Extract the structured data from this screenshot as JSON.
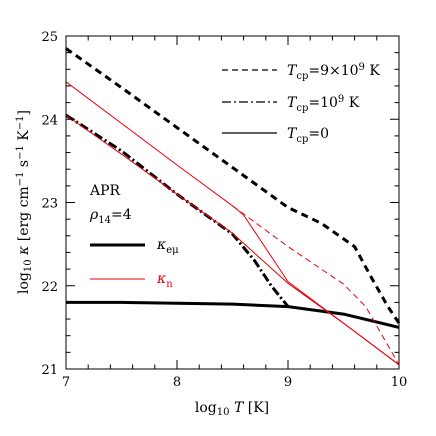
{
  "chart_data": {
    "type": "line",
    "title": "",
    "xlabel": "log₁₀ T [K]",
    "ylabel": "log₁₀ κ [erg cm⁻¹ s⁻¹ K⁻¹]",
    "xlim": [
      7,
      10
    ],
    "ylim": [
      21,
      25
    ],
    "x_ticks": [
      7,
      8,
      9,
      10
    ],
    "y_ticks": [
      21,
      22,
      23,
      24,
      25
    ],
    "grid": false,
    "legend_placement": "top-right",
    "legend": [
      {
        "label": "T_cp=9×10⁹ K",
        "style": "dashed"
      },
      {
        "label": "T_cp=10⁹ K",
        "style": "dash-dot"
      },
      {
        "label": "T_cp=0",
        "style": "solid"
      }
    ],
    "annotations": {
      "model": "APR",
      "density": "ρ₁₄=4",
      "kappa_e_label": "κ_eμ",
      "kappa_n_label": "κ_n"
    },
    "colors": {
      "kappa_e": "#000000",
      "kappa_n": "#e8000b"
    },
    "series": [
      {
        "name": "κ_eμ",
        "cp": "T_cp=0",
        "color": "#000000",
        "width": 3.0,
        "dash": "",
        "x": [
          7,
          7.5,
          8,
          8.5,
          9,
          9.5,
          10
        ],
        "y": [
          21.8,
          21.8,
          21.79,
          21.78,
          21.75,
          21.66,
          21.5
        ]
      },
      {
        "name": "κ_eμ",
        "cp": "T_cp=10⁹ K",
        "color": "#000000",
        "width": 3.0,
        "dash": "9,3,2,3",
        "x": [
          7,
          7.5,
          8,
          8.5,
          8.7,
          8.85,
          9
        ],
        "y": [
          24.05,
          23.62,
          23.1,
          22.62,
          22.3,
          22.0,
          21.75
        ]
      },
      {
        "name": "κ_eμ",
        "cp": "T_cp=9×10⁹ K",
        "color": "#000000",
        "width": 3.0,
        "dash": "7,5",
        "x": [
          7,
          7.5,
          8,
          8.5,
          9,
          9.3,
          9.6,
          9.75,
          9.9,
          10
        ],
        "y": [
          24.85,
          24.38,
          23.9,
          23.42,
          22.94,
          22.75,
          22.47,
          22.1,
          21.75,
          21.55
        ]
      },
      {
        "name": "κ_n",
        "cp": "T_cp=0",
        "color": "#e8000b",
        "width": 1.0,
        "dash": "",
        "x": [
          7,
          7.5,
          8,
          8.5,
          9,
          9.5,
          10
        ],
        "y": [
          24.05,
          23.58,
          23.1,
          22.63,
          22.03,
          21.55,
          21.05
        ]
      },
      {
        "name": "κ_n",
        "cp": "T_cp=10⁹ K",
        "color": "#e8000b",
        "width": 1.0,
        "dash": "",
        "x": [
          7,
          7.5,
          8,
          8.5,
          8.6,
          8.75,
          9,
          10
        ],
        "y": [
          24.45,
          23.95,
          23.45,
          22.96,
          22.85,
          22.55,
          22.05,
          21.05
        ]
      },
      {
        "name": "κ_n",
        "cp": "T_cp=9×10⁹ K",
        "color": "#e8000b",
        "width": 1.0,
        "dash": "6,4",
        "x": [
          8.5,
          9,
          9.5,
          9.7,
          10
        ],
        "y": [
          22.96,
          22.47,
          22.02,
          21.75,
          21.05
        ]
      }
    ]
  }
}
